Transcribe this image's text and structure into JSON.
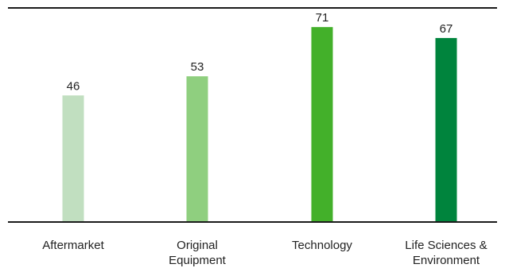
{
  "chart_data": {
    "type": "bar",
    "title": "",
    "xlabel": "",
    "ylabel": "",
    "categories": [
      [
        "Aftermarket"
      ],
      [
        "Original",
        "Equipment"
      ],
      [
        "Technology"
      ],
      [
        "Life Sciences &",
        "Environment"
      ]
    ],
    "values": [
      46,
      53,
      71,
      67
    ],
    "ylim": [
      0,
      78
    ],
    "grid": false,
    "legend": "none",
    "colors": [
      "#c1dfc0",
      "#8fcf7f",
      "#43b02a",
      "#00843d"
    ]
  }
}
